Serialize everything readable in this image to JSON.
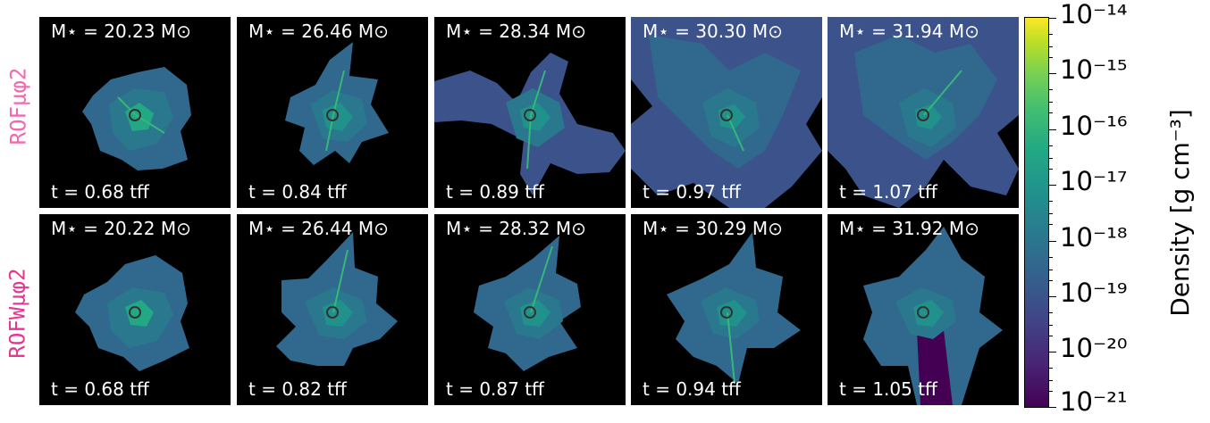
{
  "rows": [
    {
      "label": "ROFμφ2",
      "panels": [
        {
          "mass": "M⋆ = 20.23 M⊙",
          "time": "t = 0.68 tff"
        },
        {
          "mass": "M⋆ = 26.46 M⊙",
          "time": "t = 0.84 tff"
        },
        {
          "mass": "M⋆ = 28.34 M⊙",
          "time": "t = 0.89 tff"
        },
        {
          "mass": "M⋆ = 30.30 M⊙",
          "time": "t = 0.97 tff"
        },
        {
          "mass": "M⋆ = 31.94 M⊙",
          "time": "t = 1.07 tff"
        }
      ]
    },
    {
      "label": "ROFWμφ2",
      "panels": [
        {
          "mass": "M⋆ = 20.22 M⊙",
          "time": "t = 0.68 tff"
        },
        {
          "mass": "M⋆ = 26.44 M⊙",
          "time": "t = 0.82 tff"
        },
        {
          "mass": "M⋆ = 28.32 M⊙",
          "time": "t = 0.87 tff"
        },
        {
          "mass": "M⋆ = 30.29 M⊙",
          "time": "t = 0.94 tff"
        },
        {
          "mass": "M⋆ = 31.92 M⊙",
          "time": "t = 1.05 tff"
        }
      ]
    }
  ],
  "colorbar": {
    "label": "Density [g cm⁻³]",
    "ticks": [
      "10⁻¹⁴",
      "10⁻¹⁵",
      "10⁻¹⁶",
      "10⁻¹⁷",
      "10⁻¹⁸",
      "10⁻¹⁹",
      "10⁻²⁰",
      "10⁻²¹"
    ],
    "colormap": [
      "#440154",
      "#414487",
      "#2a788e",
      "#22a884",
      "#7ad151",
      "#fde725"
    ]
  }
}
